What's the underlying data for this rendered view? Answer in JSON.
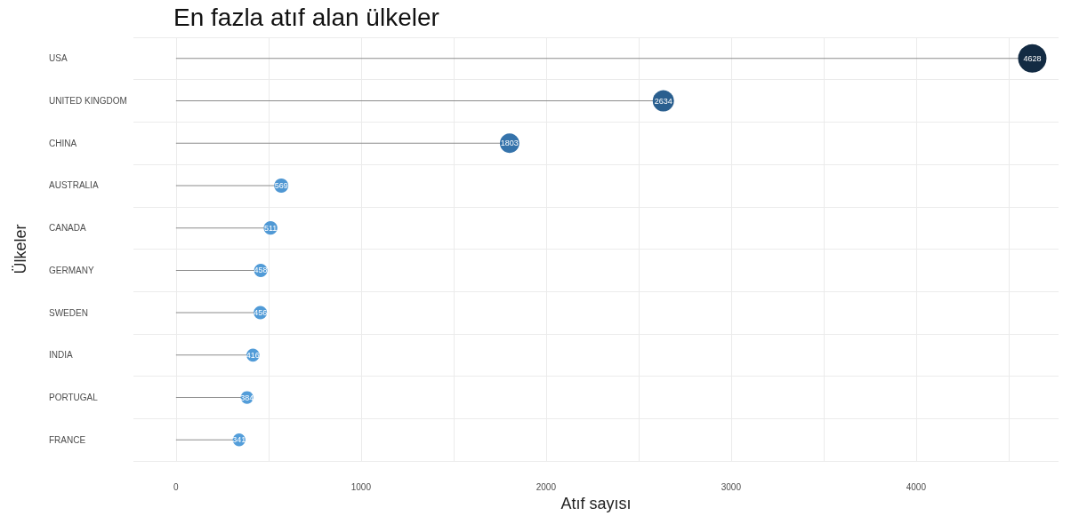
{
  "chart_data": {
    "type": "lollipop",
    "orientation": "horizontal",
    "title": "En fazla atıf alan ülkeler",
    "xlabel": "Atıf sayısı",
    "ylabel": "Ülkeler",
    "categories": [
      "USA",
      "UNITED KINGDOM",
      "CHINA",
      "AUSTRALIA",
      "CANADA",
      "GERMANY",
      "SWEDEN",
      "INDIA",
      "PORTUGAL",
      "FRANCE"
    ],
    "values": [
      4628,
      2634,
      1803,
      569,
      511,
      458,
      456,
      416,
      384,
      341
    ],
    "colors": [
      "#132b43",
      "#2a5f8f",
      "#3573ab",
      "#4f97d3",
      "#5099d5",
      "#519bd7",
      "#519bd7",
      "#529cd8",
      "#539dd9",
      "#549eda"
    ],
    "data_labels": true,
    "xlim": [
      -230,
      4770
    ],
    "xticks": [
      0,
      {
        "value": 500,
        "label": null
      },
      1000,
      {
        "value": 1500,
        "label": null
      },
      2000,
      {
        "value": 2500,
        "label": null
      },
      3000,
      {
        "value": 3500,
        "label": null
      },
      4000,
      {
        "value": 4500,
        "label": null
      }
    ],
    "sizes": [
      1,
      0.56,
      0.47,
      0.25,
      0.23,
      0.22,
      0.22,
      0.21,
      0.2,
      0.2
    ],
    "grid": true,
    "marker": "circle"
  }
}
